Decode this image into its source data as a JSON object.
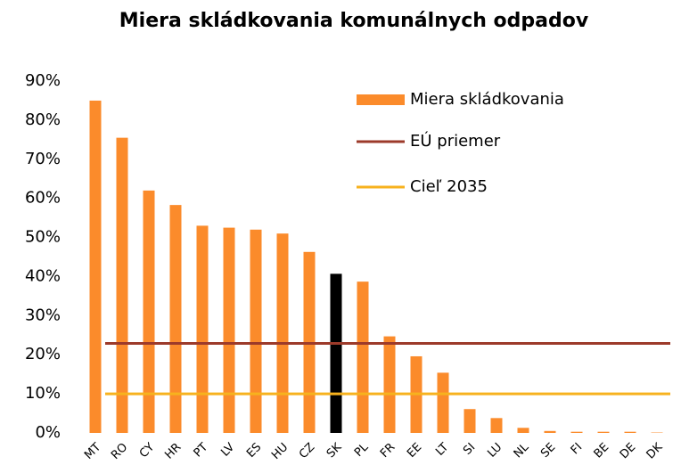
{
  "chart_data": {
    "type": "bar",
    "title": "Miera skládkovania komunálnych odpadov",
    "categories": [
      "MT",
      "RO",
      "CY",
      "HR",
      "PT",
      "LV",
      "ES",
      "HU",
      "CZ",
      "SK",
      "PL",
      "FR",
      "EE",
      "LT",
      "SI",
      "LU",
      "NL",
      "SE",
      "FI",
      "BE",
      "DE",
      "DK"
    ],
    "series": [
      {
        "name": "Miera skládkovania",
        "color": "#fb8b2b",
        "colors": [
          "#fb8b2b",
          "#fb8b2b",
          "#fb8b2b",
          "#fb8b2b",
          "#fb8b2b",
          "#fb8b2b",
          "#fb8b2b",
          "#fb8b2b",
          "#fb8b2b",
          "#000000",
          "#fb8b2b",
          "#fb8b2b",
          "#fb8b2b",
          "#fb8b2b",
          "#fb8b2b",
          "#fb8b2b",
          "#fb8b2b",
          "#fb8b2b",
          "#fb8b2b",
          "#fb8b2b",
          "#fb8b2b",
          "#fb8b2b"
        ],
        "values": [
          85,
          75.5,
          62,
          58.3,
          53,
          52.5,
          52,
          51,
          46.3,
          40.7,
          38.7,
          24.7,
          19.6,
          15.4,
          6.1,
          3.8,
          1.3,
          0.5,
          0.3,
          0.3,
          0.3,
          0.1
        ]
      }
    ],
    "reference_lines": [
      {
        "name": "EÚ priemer",
        "color": "#9c3a2a",
        "value": 22.9
      },
      {
        "name": "Cieľ 2035",
        "color": "#f7b21e",
        "value": 10
      }
    ],
    "ylim": [
      0,
      90
    ],
    "yticks": [
      {
        "value": 0,
        "label": "0%"
      },
      {
        "value": 10,
        "label": "10%"
      },
      {
        "value": 20,
        "label": "20%"
      },
      {
        "value": 30,
        "label": "30%"
      },
      {
        "value": 40,
        "label": "40%"
      },
      {
        "value": 50,
        "label": "50%"
      },
      {
        "value": 60,
        "label": "60%"
      },
      {
        "value": 70,
        "label": "70%"
      },
      {
        "value": 80,
        "label": "80%"
      },
      {
        "value": 90,
        "label": "90%"
      }
    ],
    "grid": false,
    "legend": "upper right"
  }
}
